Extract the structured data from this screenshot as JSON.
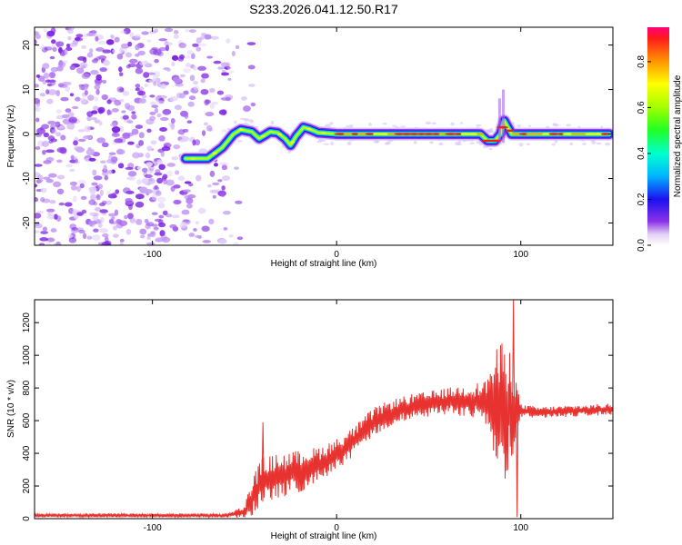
{
  "title": "S233.2026.041.12.50.R17",
  "colors": {
    "snr_line": "#e8322f",
    "background": "#ffffff",
    "axis": "#000000"
  },
  "chart_data": [
    {
      "type": "heatmap",
      "name": "spectrogram",
      "xlabel": "Height of straight line (km)",
      "ylabel": "Frequency (Hz)",
      "xlim": [
        -164,
        150
      ],
      "ylim": [
        -25,
        24
      ],
      "xticks": [
        -100,
        0,
        100
      ],
      "xtick_labels": [
        "-100",
        "0",
        "100"
      ],
      "yticks": [
        -20,
        -10,
        0,
        10,
        20
      ],
      "ytick_labels": [
        "-20",
        "-10",
        "0",
        "10",
        "20"
      ],
      "colorbar": {
        "label": "Normalized spectral amplitude",
        "range": [
          0.0,
          0.95
        ],
        "ticks": [
          0.0,
          0.2,
          0.4,
          0.6,
          0.8
        ],
        "tick_labels": [
          "0.0",
          "0.2",
          "0.4",
          "0.6",
          "0.8"
        ]
      },
      "noise_region": {
        "x_start": -164,
        "x_end": -60
      },
      "signal_trace": {
        "x": [
          -82,
          -70,
          -62,
          -56,
          -52,
          -46,
          -42,
          -36,
          -32,
          -28,
          -25,
          -22,
          -18,
          -14,
          -10,
          -6,
          0,
          20,
          40,
          60,
          78,
          82,
          86,
          89,
          91,
          95,
          110,
          130,
          148
        ],
        "freq": [
          -5.5,
          -5.5,
          -3,
          0,
          1,
          0.5,
          -1,
          0.5,
          0.3,
          -1,
          -2.5,
          -0.5,
          1.5,
          1,
          0.3,
          0.2,
          0,
          0,
          0,
          0,
          0,
          -1.5,
          -1.5,
          0,
          3,
          0,
          0,
          0,
          0
        ]
      }
    },
    {
      "type": "line",
      "name": "snr",
      "xlabel": "Height of straight line (km)",
      "ylabel": "SNR (10 * v/v)",
      "xlim": [
        -164,
        150
      ],
      "ylim": [
        0,
        1340
      ],
      "xticks": [
        -100,
        0,
        100
      ],
      "xtick_labels": [
        "-100",
        "0",
        "100"
      ],
      "yticks": [
        0,
        200,
        400,
        600,
        800,
        1000,
        1200
      ],
      "ytick_labels": [
        "0",
        "200",
        "400",
        "600",
        "800",
        "1000",
        "1200"
      ],
      "envelope": {
        "x": [
          -164,
          -60,
          -50,
          -45,
          -40,
          -30,
          -20,
          -10,
          0,
          10,
          20,
          30,
          40,
          60,
          80,
          85,
          90,
          95,
          100,
          110,
          130,
          150
        ],
        "mean": [
          20,
          20,
          40,
          150,
          230,
          260,
          290,
          330,
          390,
          480,
          590,
          650,
          680,
          720,
          720,
          700,
          650,
          680,
          660,
          650,
          660,
          670
        ],
        "amp": [
          12,
          12,
          40,
          130,
          150,
          140,
          130,
          110,
          100,
          90,
          90,
          80,
          80,
          80,
          120,
          300,
          450,
          350,
          40,
          35,
          35,
          35
        ]
      },
      "annotations": [
        {
          "x": -40,
          "y": 590
        },
        {
          "x": 96,
          "y": 1340
        },
        {
          "x": 98,
          "y": 10
        }
      ]
    }
  ]
}
